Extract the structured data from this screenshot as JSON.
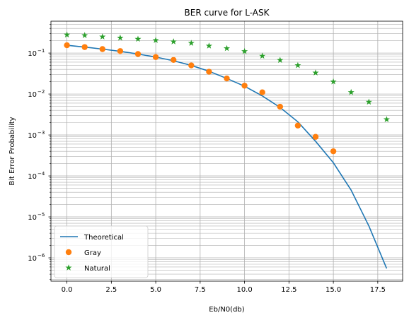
{
  "chart_data": {
    "type": "line",
    "title": "BER curve for L-ASK",
    "xlabel": "Eb/N0(db)",
    "ylabel": "Bit Error Probability",
    "xlim": [
      -0.9,
      18.9
    ],
    "ylim": [
      2.7e-07,
      0.6
    ],
    "yscale": "log",
    "grid": "major-and-minor",
    "legend_position": "lower-left",
    "x_ticks": [
      0.0,
      2.5,
      5.0,
      7.5,
      10.0,
      12.5,
      15.0,
      17.5
    ],
    "x_tick_labels": [
      "0.0",
      "2.5",
      "5.0",
      "7.5",
      "10.0",
      "12.5",
      "15.0",
      "17.5"
    ],
    "y_tick_exponents": [
      -6,
      -5,
      -4,
      -3,
      -2,
      -1
    ],
    "y_tick_base": "10",
    "series": [
      {
        "name": "Theoretical",
        "style": "line",
        "color": "#1f77b4",
        "x": [
          0,
          1,
          2,
          3,
          4,
          5,
          6,
          7,
          8,
          9,
          10,
          11,
          12,
          13,
          14,
          15,
          16,
          17,
          18
        ],
        "y": [
          0.155,
          0.14,
          0.125,
          0.11,
          0.095,
          0.08,
          0.065,
          0.05,
          0.036,
          0.024,
          0.0155,
          0.009,
          0.0047,
          0.0021,
          0.0007,
          0.00021,
          4.5e-05,
          6e-06,
          5.5e-07
        ]
      },
      {
        "name": "Gray",
        "style": "circle",
        "color": "#ff7f0e",
        "x": [
          0,
          1,
          2,
          3,
          4,
          5,
          6,
          7,
          8,
          9,
          10,
          11,
          12,
          13,
          14,
          15
        ],
        "y": [
          0.155,
          0.14,
          0.125,
          0.112,
          0.095,
          0.08,
          0.068,
          0.05,
          0.035,
          0.024,
          0.016,
          0.011,
          0.0049,
          0.0017,
          0.0009,
          0.0004
        ]
      },
      {
        "name": "Natural",
        "style": "star",
        "color": "#2ca02c",
        "x": [
          0,
          1,
          2,
          3,
          4,
          5,
          6,
          7,
          8,
          9,
          10,
          11,
          12,
          13,
          14,
          15,
          16,
          17,
          18
        ],
        "y": [
          0.28,
          0.27,
          0.25,
          0.235,
          0.22,
          0.205,
          0.19,
          0.175,
          0.15,
          0.13,
          0.11,
          0.085,
          0.067,
          0.05,
          0.033,
          0.02,
          0.011,
          0.0064,
          0.0024
        ]
      }
    ]
  }
}
